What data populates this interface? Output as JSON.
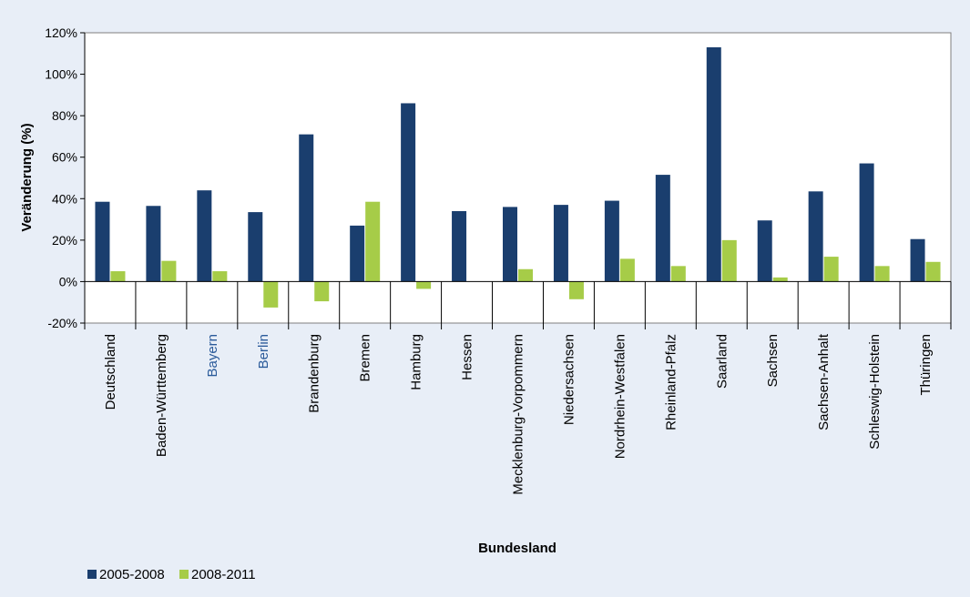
{
  "chart_data": {
    "type": "bar",
    "title": "",
    "xlabel": "Bundesland",
    "ylabel": "Veränderung (%)",
    "ylim": [
      -20,
      120
    ],
    "yticks": [
      -20,
      0,
      20,
      40,
      60,
      80,
      100,
      120
    ],
    "ytick_labels": [
      "-20%",
      "0%",
      "20%",
      "40%",
      "60%",
      "80%",
      "100%",
      "120%"
    ],
    "grid": false,
    "legend_position": "bottom-left",
    "categories": [
      "Deutschland",
      "Baden-Württemberg",
      "Bayern",
      "Berlin",
      "Brandenburg",
      "Bremen",
      "Hamburg",
      "Hessen",
      "Mecklenburg-Vorpommern",
      "Niedersachsen",
      "Nordrhein-Westfalen",
      "Rheinland-Pfalz",
      "Saarland",
      "Sachsen",
      "Sachsen-Anhalt",
      "Schleswig-Holstein",
      "Thüringen"
    ],
    "highlighted_categories": [
      "Bayern",
      "Berlin"
    ],
    "series": [
      {
        "name": "2005-2008",
        "color": "#1a3e6e",
        "values": [
          38.5,
          36.5,
          44,
          33.5,
          71,
          27,
          86,
          34,
          36,
          37,
          39,
          51.5,
          113,
          29.5,
          43.5,
          57,
          20.5
        ]
      },
      {
        "name": "2008-2011",
        "color": "#a6cc48",
        "values": [
          5,
          10,
          5,
          -12.5,
          -9.5,
          38.5,
          -3.5,
          0,
          6,
          -8.5,
          11,
          7.5,
          20,
          2,
          12,
          7.5,
          9.5
        ]
      }
    ]
  },
  "colors": {
    "background": "#e8eef7",
    "plot_background": "#ffffff",
    "highlight_label": "#2a5a9a"
  }
}
